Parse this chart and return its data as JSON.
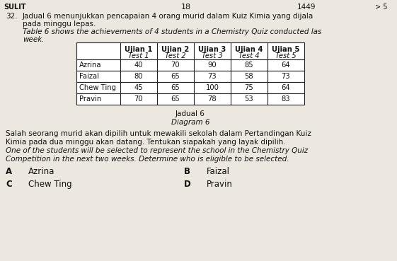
{
  "page_number": "18",
  "page_number2": "1449",
  "sulit_text": "SULIT",
  "question_number": "32.",
  "malay_text_line1": "Jadual 6 menunjukkan pencapaian 4 orang murid dalam Kuiz Kimia yang dijala",
  "malay_text_line2": "pada minggu lepas.",
  "english_text_line1": "Table 6 shows the achievements of 4 students in a Chemistry Quiz conducted las",
  "english_text_line2": "week.",
  "table_headers_line1": [
    "",
    "Ujian 1",
    "Ujian 2",
    "Ujian 3",
    "Ujian 4",
    "Ujian 5"
  ],
  "table_headers_line2": [
    "",
    "Test 1",
    "Test 2",
    "Test 3",
    "Test 4",
    "Test 5"
  ],
  "students": [
    "Azrina",
    "Faizal",
    "Chew Ting",
    "Pravin"
  ],
  "scores": [
    [
      40,
      70,
      90,
      85,
      64
    ],
    [
      80,
      65,
      73,
      58,
      73
    ],
    [
      45,
      65,
      100,
      75,
      64
    ],
    [
      70,
      65,
      78,
      53,
      83
    ]
  ],
  "caption_malay": "Jadual 6",
  "caption_english": "Diagram 6",
  "body_text_malay": "Salah seorang murid akan dipilih untuk mewakili sekolah dalam Pertandingan Kuiz",
  "body_text_malay2": "Kimia pada dua minggu akan datang. Tentukan siapakah yang layak dipilih.",
  "body_text_english": "One of the students will be selected to represent the school in the Chemistry Quiz",
  "body_text_english2": "Competition in the next two weeks. Determine who is eligible to be selected.",
  "options": [
    {
      "letter": "A",
      "text": "Azrina"
    },
    {
      "letter": "B",
      "text": "Faizal"
    },
    {
      "letter": "C",
      "text": "Chew Ting"
    },
    {
      "letter": "D",
      "text": "Pravin"
    }
  ],
  "bg_color": "#ede8df",
  "table_border_color": "#222222",
  "text_color": "#111111"
}
